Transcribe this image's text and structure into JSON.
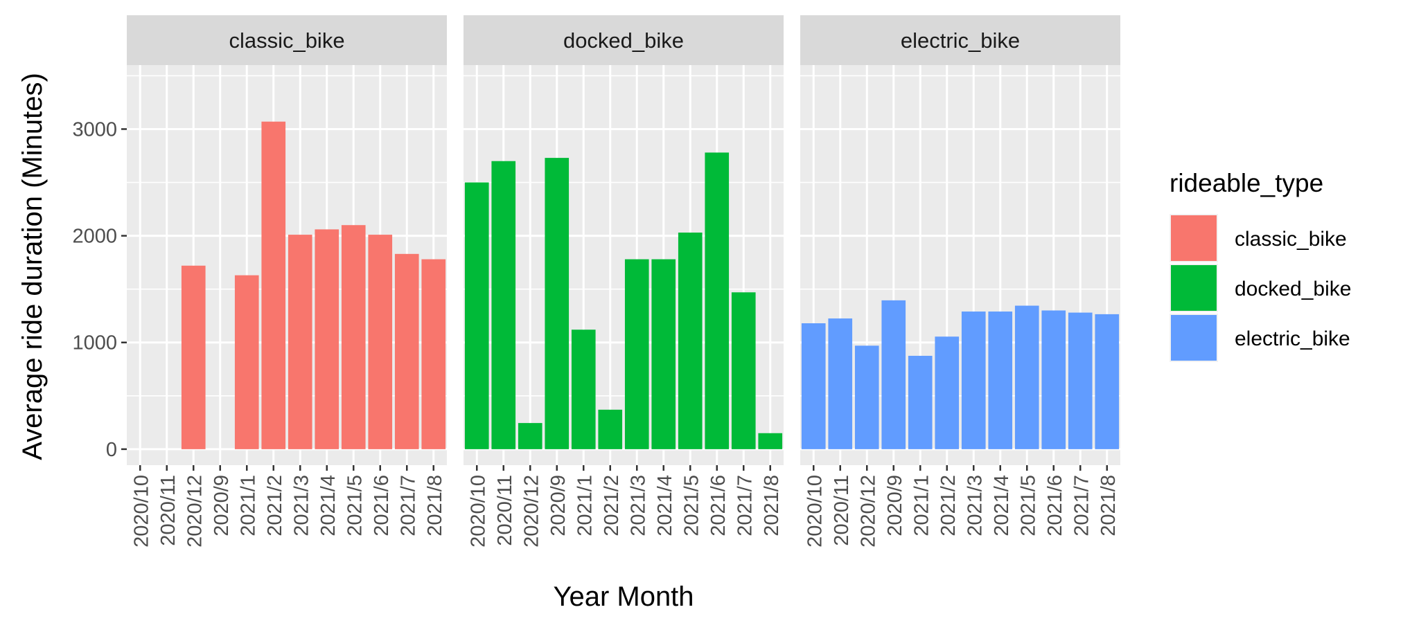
{
  "chart_data": {
    "type": "bar",
    "facet_by": "rideable_type",
    "xlabel": "Year Month",
    "ylabel": "Average ride duration (Minutes)",
    "ylim": [
      -150,
      3600
    ],
    "y_ticks": [
      0,
      1000,
      2000,
      3000
    ],
    "categories": [
      "2020/10",
      "2020/11",
      "2020/12",
      "2020/9",
      "2021/1",
      "2021/2",
      "2021/3",
      "2021/4",
      "2021/5",
      "2021/6",
      "2021/7",
      "2021/8"
    ],
    "legend": {
      "title": "rideable_type",
      "placement": "right",
      "entries": [
        "classic_bike",
        "docked_bike",
        "electric_bike"
      ]
    },
    "grid": true,
    "panels": [
      {
        "name": "classic_bike",
        "color": "#F8766D",
        "values": [
          null,
          null,
          1720,
          null,
          1630,
          3070,
          2010,
          2060,
          2100,
          2010,
          1830,
          1780
        ]
      },
      {
        "name": "docked_bike",
        "color": "#00BA38",
        "values": [
          2500,
          2700,
          245,
          2730,
          1120,
          370,
          1780,
          1780,
          2030,
          2780,
          1470,
          150
        ]
      },
      {
        "name": "electric_bike",
        "color": "#619CFF",
        "values": [
          1180,
          1225,
          970,
          1395,
          875,
          1055,
          1290,
          1290,
          1345,
          1300,
          1280,
          1265
        ]
      }
    ]
  }
}
